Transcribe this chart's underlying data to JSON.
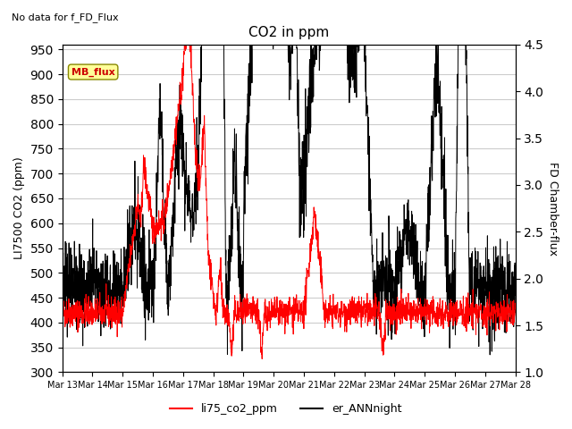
{
  "title": "CO2 in ppm",
  "suptitle": "No data for f_FD_Flux",
  "ylabel_left": "LI7500 CO2 (ppm)",
  "ylabel_right": "FD Chamber-flux",
  "ylim_left": [
    300,
    960
  ],
  "ylim_right": [
    1.0,
    4.5
  ],
  "yticks_left": [
    300,
    350,
    400,
    450,
    500,
    550,
    600,
    650,
    700,
    750,
    800,
    850,
    900,
    950
  ],
  "yticks_right": [
    1.0,
    1.5,
    2.0,
    2.5,
    3.0,
    3.5,
    4.0,
    4.5
  ],
  "xtick_labels": [
    "Mar 13",
    "Mar 14",
    "Mar 15",
    "Mar 16",
    "Mar 17",
    "Mar 18",
    "Mar 19",
    "Mar 20",
    "Mar 21",
    "Mar 22",
    "Mar 23",
    "Mar 24",
    "Mar 25",
    "Mar 26",
    "Mar 27",
    "Mar 28"
  ],
  "color_co2": "#ff0000",
  "color_er": "#000000",
  "legend_co2": "li75_co2_ppm",
  "legend_er": "er_ANNnight",
  "mb_flux_label": "MB_flux",
  "mb_flux_color": "#cc0000",
  "mb_flux_bg": "#ffff99",
  "mb_flux_border": "#888800",
  "grid_color": "#cccccc",
  "background_color": "#ffffff"
}
